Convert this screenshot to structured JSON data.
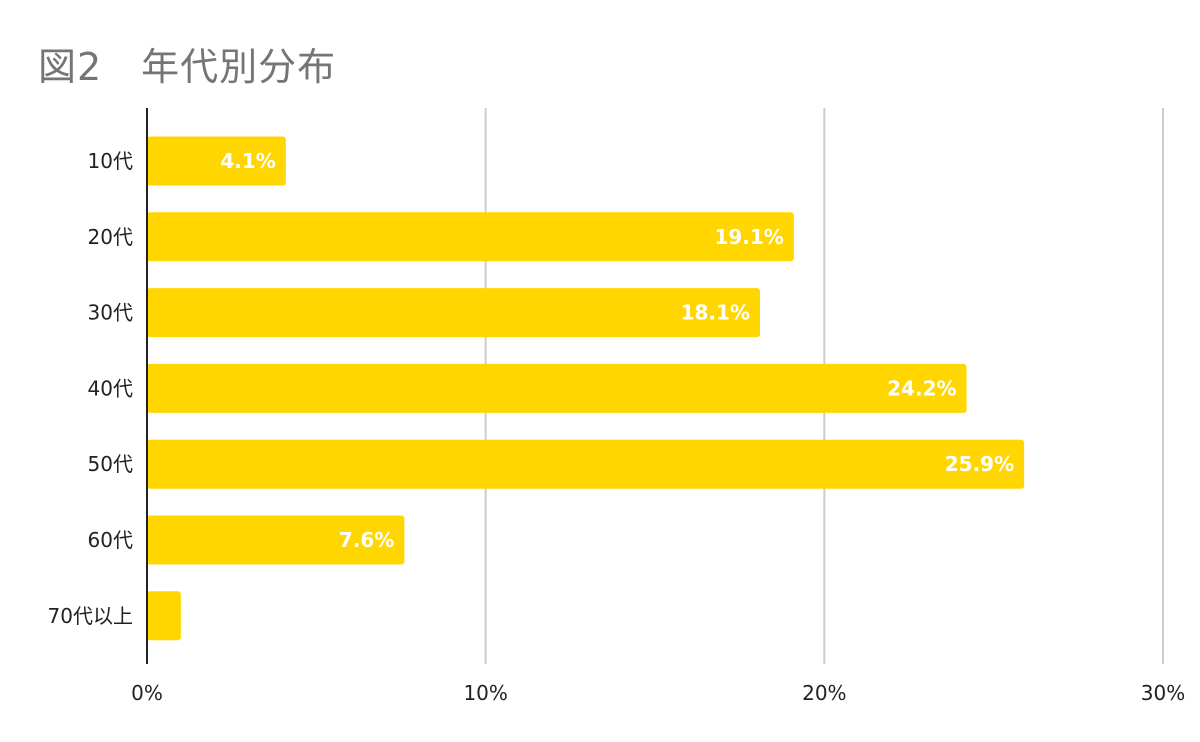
{
  "chart_data": {
    "type": "bar",
    "orientation": "horizontal",
    "title": "図2　年代別分布",
    "categories": [
      "10代",
      "20代",
      "30代",
      "40代",
      "50代",
      "60代",
      "70代以上"
    ],
    "values": [
      4.1,
      19.1,
      18.1,
      24.2,
      25.9,
      7.6,
      1.0
    ],
    "data_labels": [
      "4.1%",
      "19.1%",
      "18.1%",
      "24.2%",
      "25.9%",
      "7.6%",
      ""
    ],
    "xlim": [
      0,
      30
    ],
    "x_ticks": [
      0,
      10,
      20,
      30
    ],
    "x_tick_labels": [
      "0%",
      "10%",
      "20%",
      "30%"
    ],
    "xlabel": "",
    "ylabel": "",
    "grid": true,
    "legend": "none",
    "bar_color": "#FFD600"
  }
}
